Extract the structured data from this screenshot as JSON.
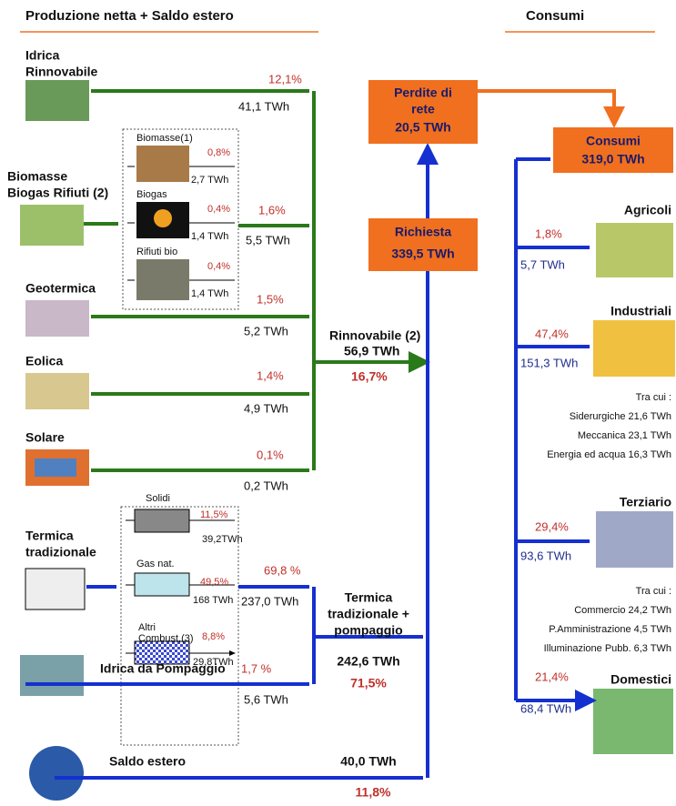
{
  "header": {
    "production_title": "Produzione netta + Saldo estero",
    "consumption_title": "Consumi"
  },
  "sources": {
    "idrica": {
      "label": [
        "Idrica",
        "Rinnovabile"
      ],
      "share": "12,1%",
      "energy": "41,1 TWh"
    },
    "biomasse": {
      "label": [
        "Biomasse",
        "Biogas Rifiuti (2)"
      ],
      "share": "1,6%",
      "energy": "5,5 TWh",
      "items": [
        {
          "label": "Biomasse(1)",
          "share": "0,8%",
          "energy": "2,7 TWh"
        },
        {
          "label": "Biogas",
          "share": "0,4%",
          "energy": "1,4 TWh"
        },
        {
          "label": "Rifiuti bio",
          "share": "0,4%",
          "energy": "1,4 TWh"
        }
      ]
    },
    "geotermica": {
      "label": "Geotermica",
      "share": "1,5%",
      "energy": "5,2 TWh"
    },
    "eolica": {
      "label": "Eolica",
      "share": "1,4%",
      "energy": "4,9 TWh"
    },
    "solare": {
      "label": "Solare",
      "share": "0,1%",
      "energy": "0,2 TWh"
    },
    "termica": {
      "label": [
        "Termica",
        "tradizionale"
      ],
      "share": "69,8 %",
      "energy": "237,0 TWh",
      "items": [
        {
          "label": [
            "Solidi"
          ],
          "share": "11,5%",
          "energy": "39,2TWh"
        },
        {
          "label": [
            "Gas nat."
          ],
          "share": "49,5%",
          "energy": "168 TWh"
        },
        {
          "label": [
            "Altri",
            "Combust.(3)"
          ],
          "share": "8,8%",
          "energy": "29,8TWh"
        }
      ]
    },
    "pompaggio": {
      "label": "Idrica da Pompaggio",
      "share": "1,7 %",
      "energy": "5,6 TWh"
    },
    "saldo": {
      "label": "Saldo estero",
      "energy": "40,0 TWh",
      "share": "11,8%"
    }
  },
  "rinnovabile": {
    "label": "Rinnovabile (2)",
    "energy": "56,9 TWh",
    "share": "16,7%"
  },
  "termica_pompaggio": {
    "label": [
      "Termica",
      "tradizionale +",
      "pompaggio"
    ],
    "energy": "242,6 TWh",
    "share": "71,5%"
  },
  "richiesta": {
    "label": "Richiesta",
    "energy": "339,5 TWh"
  },
  "perdite": {
    "label": [
      "Perdite di",
      "rete"
    ],
    "energy": "20,5 TWh"
  },
  "consumi": {
    "label": "Consumi",
    "energy": "319,0 TWh"
  },
  "sectors": [
    {
      "name": "Agricoli",
      "share": "1,8%",
      "energy": "5,7 TWh"
    },
    {
      "name": "Industriali",
      "share": "47,4%",
      "energy": "151,3 TWh",
      "details_title": "Tra cui :",
      "details": [
        "Siderurgiche 21,6 TWh",
        "Meccanica 23,1 TWh",
        "Energia ed acqua 16,3 TWh"
      ]
    },
    {
      "name": "Terziario",
      "share": "29,4%",
      "energy": "93,6 TWh",
      "details_title": "Tra cui :",
      "details": [
        "Commercio 24,2 TWh",
        "P.Amministrazione 4,5 TWh",
        "Illuminazione Pubb. 6,3 TWh"
      ]
    },
    {
      "name": "Domestici",
      "share": "21,4%",
      "energy": "68,4 TWh"
    }
  ]
}
